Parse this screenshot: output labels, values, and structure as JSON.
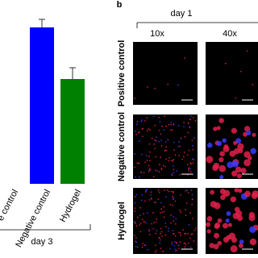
{
  "chart_data": {
    "type": "bar",
    "categories": [
      "e control",
      "Negative control",
      "Hydrogel"
    ],
    "values": [
      0,
      97,
      65
    ],
    "errors": [
      0,
      5,
      7
    ],
    "colors": [
      "#0000ff",
      "#0000ff",
      "#008000"
    ],
    "ylim": [
      0,
      114
    ],
    "group_label": "day 3"
  },
  "panel_b": {
    "label": "b",
    "group": "day 1",
    "columns": [
      "10x",
      "40x"
    ],
    "rows": [
      "Positive control",
      "Negative control",
      "Hydrogel"
    ]
  }
}
